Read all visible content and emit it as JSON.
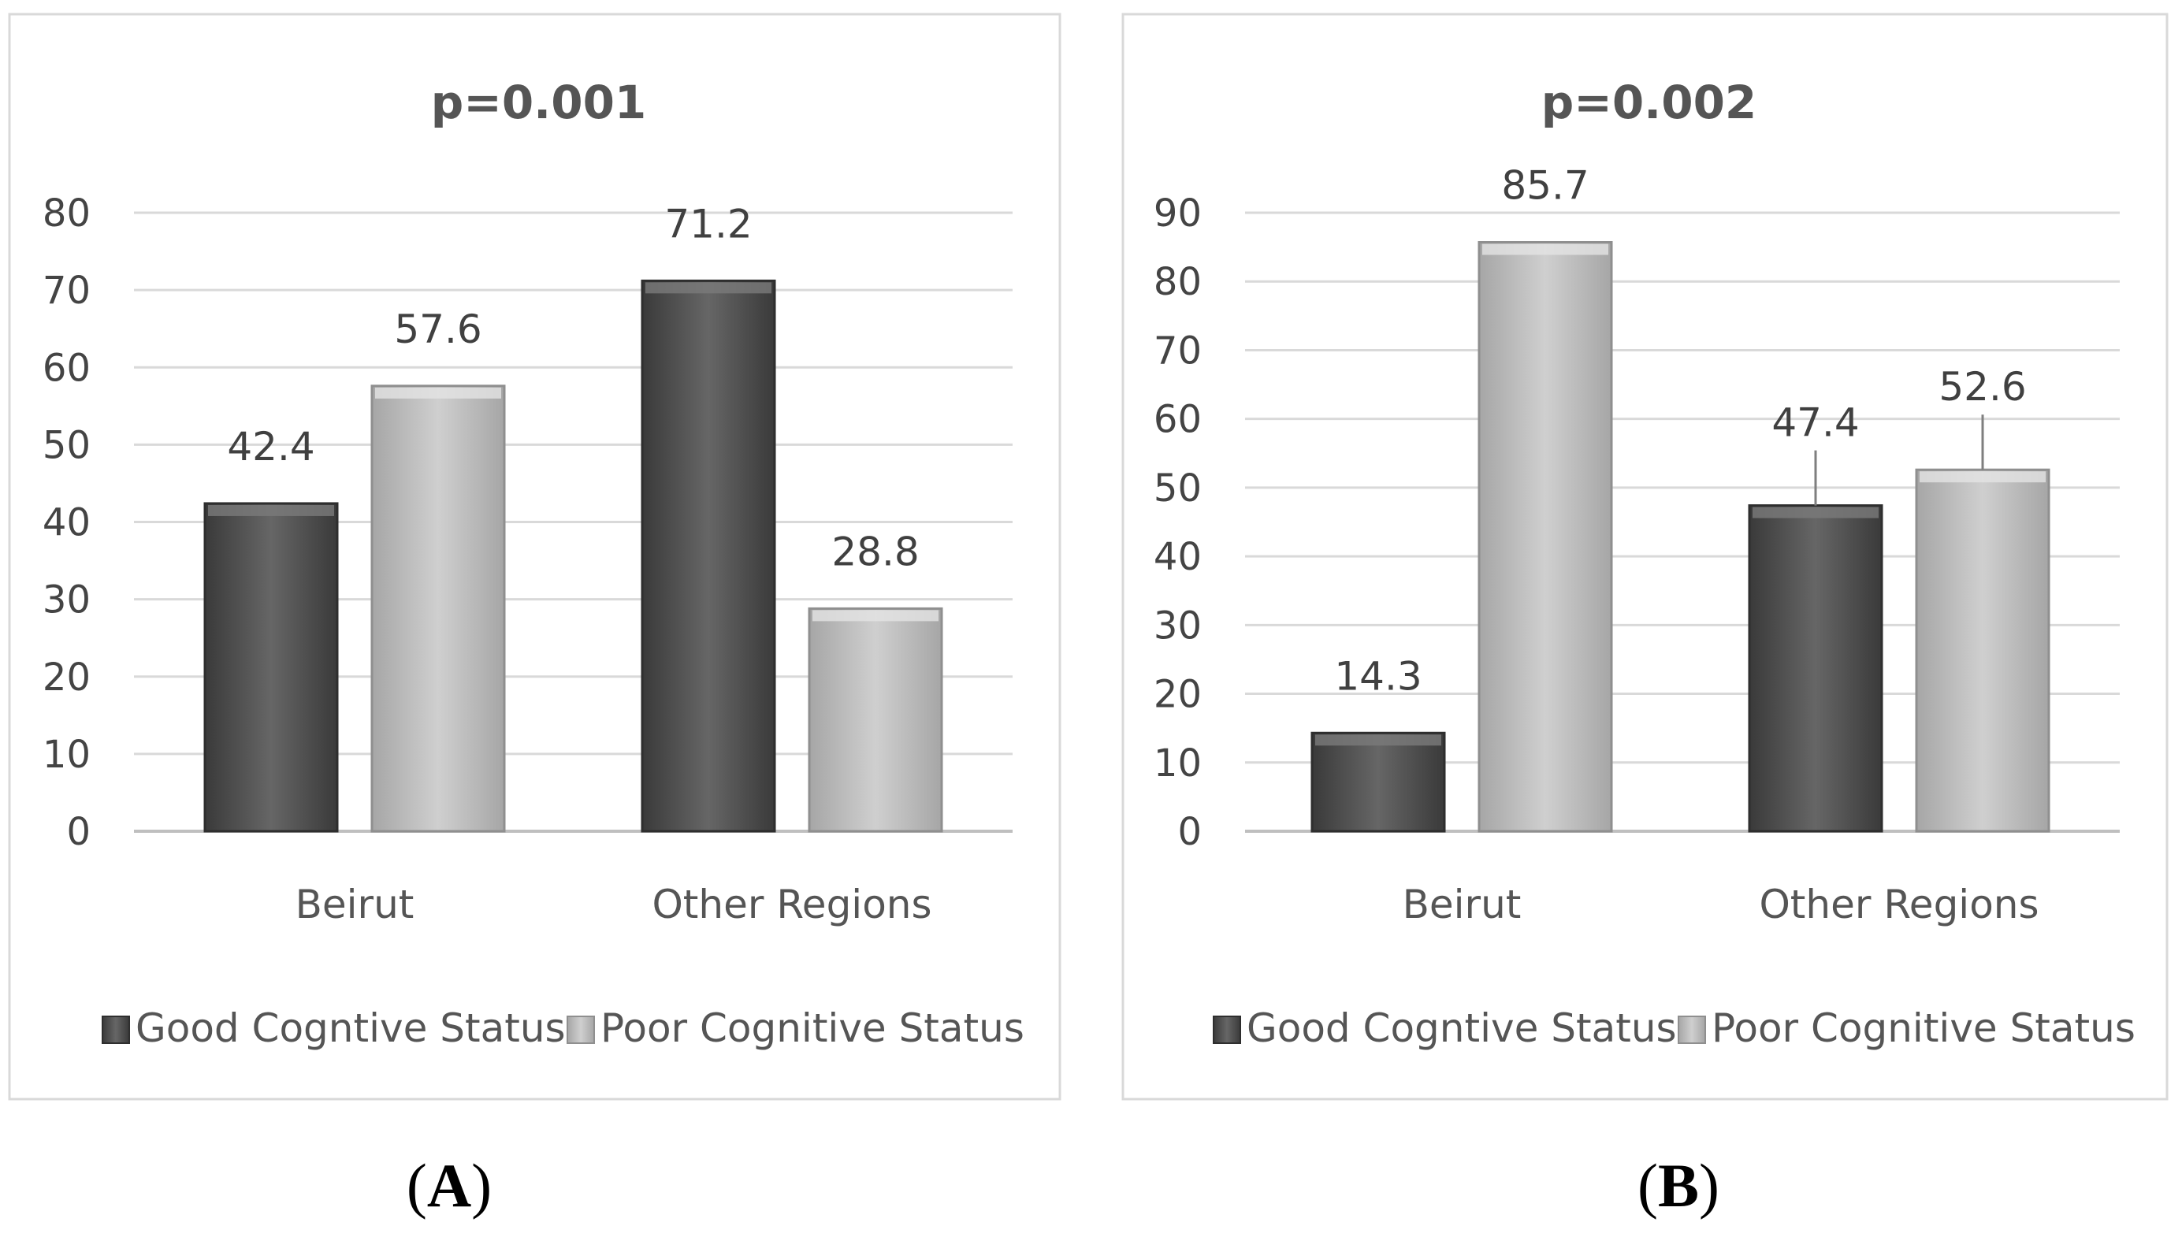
{
  "chart_data": [
    {
      "type": "bar",
      "title": "p=0.001",
      "categories": [
        "Beirut",
        "Other Regions"
      ],
      "series": [
        {
          "name": "Good Cogntive Status",
          "values": [
            42.4,
            71.2
          ],
          "color": "#555555"
        },
        {
          "name": "Poor Cognitive Status",
          "values": [
            57.6,
            28.8
          ],
          "color": "#b8b8b8"
        }
      ],
      "ylim": [
        0,
        80
      ],
      "yticks": [
        0,
        10,
        20,
        30,
        40,
        50,
        60,
        70,
        80
      ],
      "data_labels": [
        "42.4",
        "71.2",
        "57.6",
        "28.8"
      ],
      "xlabel": "",
      "ylabel": "",
      "legend": "bottom",
      "panel_label": "A"
    },
    {
      "type": "bar",
      "title": "p=0.002",
      "categories": [
        "Beirut",
        "Other Regions"
      ],
      "series": [
        {
          "name": "Good Cogntive Status",
          "values": [
            14.3,
            47.4
          ],
          "color": "#555555"
        },
        {
          "name": "Poor Cognitive Status",
          "values": [
            85.7,
            52.6
          ],
          "color": "#b8b8b8"
        }
      ],
      "ylim": [
        0,
        90
      ],
      "yticks": [
        0,
        10,
        20,
        30,
        40,
        50,
        60,
        70,
        80,
        90
      ],
      "data_labels": [
        "14.3",
        "47.4",
        "85.7",
        "52.6"
      ],
      "xlabel": "",
      "ylabel": "",
      "legend": "bottom",
      "panel_label": "B"
    }
  ]
}
